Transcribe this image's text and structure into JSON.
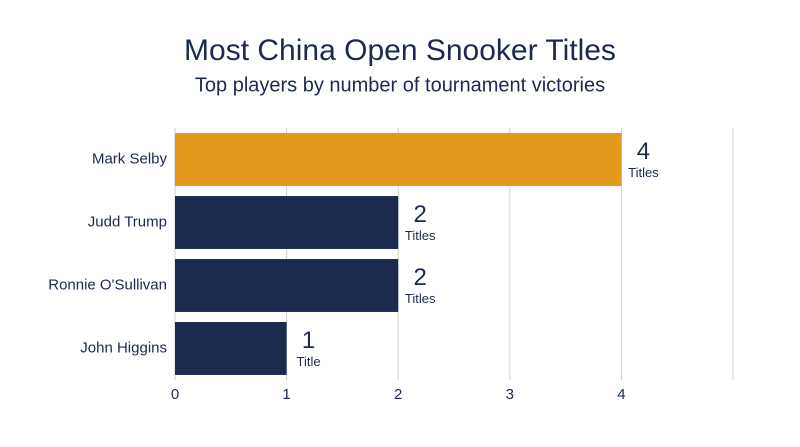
{
  "chart_data": {
    "type": "bar",
    "orientation": "horizontal",
    "title": "Most China Open Snooker Titles",
    "subtitle": "Top players by number of tournament victories",
    "categories": [
      "Mark Selby",
      "Judd Trump",
      "Ronnie O'Sullivan",
      "John Higgins"
    ],
    "values": [
      4,
      2,
      2,
      1
    ],
    "value_units": [
      "Titles",
      "Titles",
      "Titles",
      "Title"
    ],
    "colors": [
      "#e0991a",
      "#1b2a4e",
      "#1b2a4e",
      "#1b2a4e"
    ],
    "xlim": [
      0,
      5
    ],
    "xticks": [
      0,
      1,
      2,
      3,
      4
    ],
    "grid": true
  }
}
